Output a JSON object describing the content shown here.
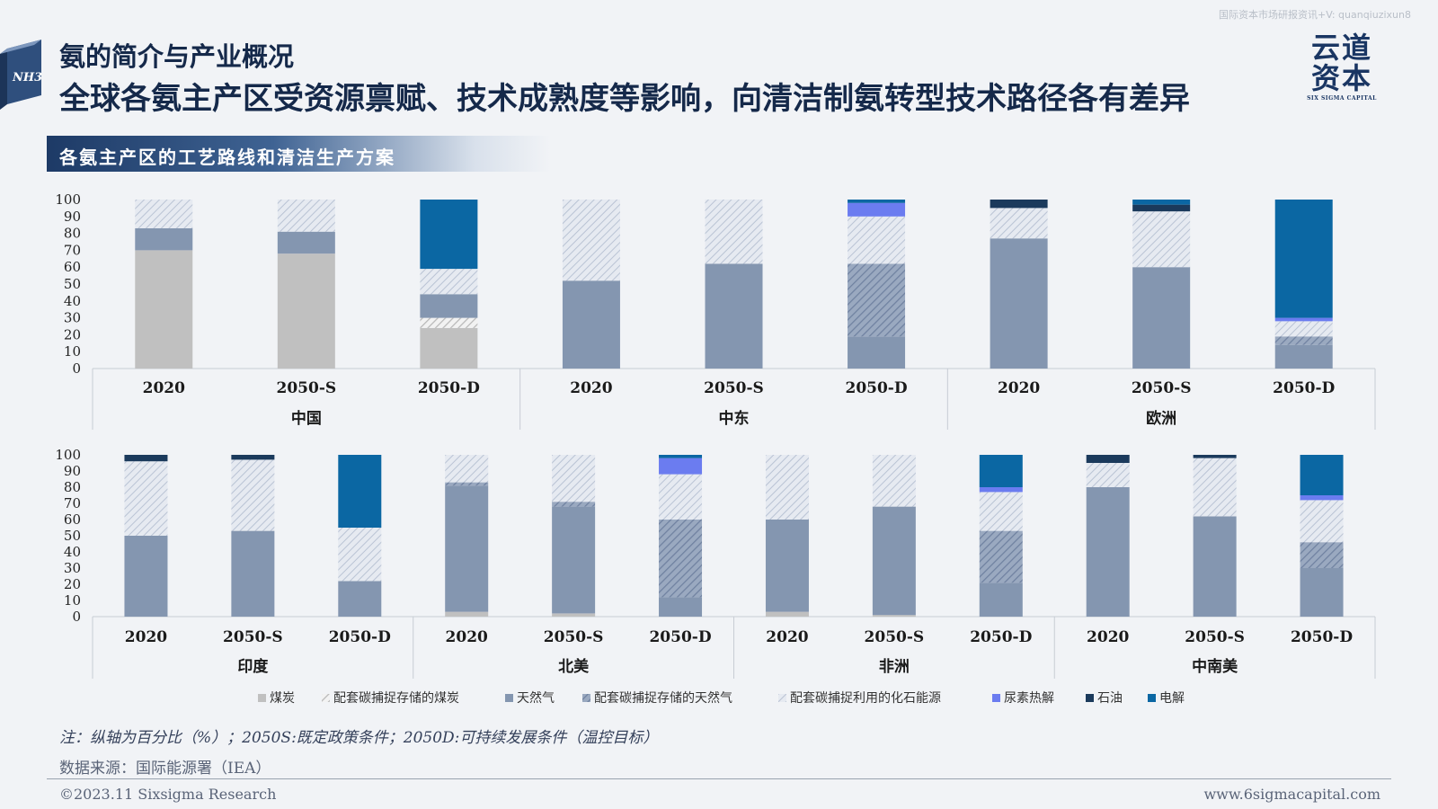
{
  "top_watermark": "国际资本市场研报资讯+V: quanqiuzixun8",
  "nh3_label": "NH3",
  "subtitle": "氨的简介与产业概况",
  "title": "全球各氨主产区受资源禀赋、技术成熟度等影响，向清洁制氨转型技术路径各有差异",
  "logo": {
    "cn_line1": "云道",
    "cn_line2": "资本",
    "en": "SIX SIGMA CAPITAL"
  },
  "banner": "各氨主产区的工艺路线和清洁生产方案",
  "note": "注：纵轴为百分比（%）；2050S:既定政策条件；2050D:可持续发展条件（温控目标）",
  "source": "数据来源：国际能源署（IEA）",
  "footer_left": "©2023.11 Sixsigma Research",
  "footer_right": "www.6sigmacapital.com",
  "colors": {
    "coal": "#c0c0c0",
    "coal_ccs": "#c0c0c0",
    "gas": "#8496b0",
    "gas_ccs": "#8496b0",
    "fossil_ccu": "#d6dce6",
    "urea": "#6b7cf0",
    "oil": "#1b3a5c",
    "electrolysis": "#0b67a3"
  },
  "chart_data": {
    "type": "bar",
    "stacked": true,
    "ylim": [
      0,
      100
    ],
    "yticks": [
      0,
      10,
      20,
      30,
      40,
      50,
      60,
      70,
      80,
      90,
      100
    ],
    "series_names": [
      "煤炭",
      "配套碳捕捉存储的煤炭",
      "天然气",
      "配套碳捕捉存储的天然气",
      "配套碳捕捉利用的化石能源",
      "尿素热解",
      "石油",
      "电解"
    ],
    "series_keys": [
      "coal",
      "coal_ccs",
      "gas",
      "gas_ccs",
      "fossil_ccu",
      "urea",
      "oil",
      "electrolysis"
    ],
    "panels": [
      {
        "regions": [
          {
            "name": "中国",
            "bars": [
              {
                "label": "2020",
                "values": [
                  70,
                  0,
                  13,
                  0,
                  17,
                  0,
                  0,
                  0
                ]
              },
              {
                "label": "2050-S",
                "values": [
                  68,
                  0,
                  13,
                  0,
                  19,
                  0,
                  0,
                  0
                ]
              },
              {
                "label": "2050-D",
                "values": [
                  24,
                  6,
                  14,
                  0,
                  15,
                  0,
                  0,
                  41
                ]
              }
            ]
          },
          {
            "name": "中东",
            "bars": [
              {
                "label": "2020",
                "values": [
                  0,
                  0,
                  52,
                  0,
                  48,
                  0,
                  0,
                  0
                ]
              },
              {
                "label": "2050-S",
                "values": [
                  0,
                  0,
                  62,
                  0,
                  38,
                  0,
                  0,
                  0
                ]
              },
              {
                "label": "2050-D",
                "values": [
                  0,
                  0,
                  19,
                  43,
                  28,
                  8,
                  0,
                  2
                ]
              }
            ]
          },
          {
            "name": "欧洲",
            "bars": [
              {
                "label": "2020",
                "values": [
                  0,
                  0,
                  77,
                  0,
                  18,
                  0,
                  5,
                  0
                ]
              },
              {
                "label": "2050-S",
                "values": [
                  0,
                  0,
                  60,
                  0,
                  33,
                  0,
                  4,
                  3
                ]
              },
              {
                "label": "2050-D",
                "values": [
                  0,
                  0,
                  14,
                  5,
                  9,
                  2,
                  0,
                  70
                ]
              }
            ]
          }
        ]
      },
      {
        "regions": [
          {
            "name": "印度",
            "bars": [
              {
                "label": "2020",
                "values": [
                  0,
                  0,
                  50,
                  0,
                  46,
                  0,
                  4,
                  0
                ]
              },
              {
                "label": "2050-S",
                "values": [
                  0,
                  0,
                  53,
                  0,
                  44,
                  0,
                  3,
                  0
                ]
              },
              {
                "label": "2050-D",
                "values": [
                  0,
                  0,
                  22,
                  0,
                  33,
                  0,
                  0,
                  45
                ]
              }
            ]
          },
          {
            "name": "北美",
            "bars": [
              {
                "label": "2020",
                "values": [
                  3,
                  0,
                  78,
                  2,
                  17,
                  0,
                  0,
                  0
                ]
              },
              {
                "label": "2050-S",
                "values": [
                  2,
                  0,
                  66,
                  3,
                  29,
                  0,
                  0,
                  0
                ]
              },
              {
                "label": "2050-D",
                "values": [
                  0,
                  0,
                  12,
                  48,
                  28,
                  10,
                  0,
                  2
                ]
              }
            ]
          },
          {
            "name": "非洲",
            "bars": [
              {
                "label": "2020",
                "values": [
                  3,
                  0,
                  57,
                  0,
                  40,
                  0,
                  0,
                  0
                ]
              },
              {
                "label": "2050-S",
                "values": [
                  1,
                  0,
                  67,
                  0,
                  32,
                  0,
                  0,
                  0
                ]
              },
              {
                "label": "2050-D",
                "values": [
                  0,
                  0,
                  21,
                  32,
                  24,
                  3,
                  0,
                  20
                ]
              }
            ]
          },
          {
            "name": "中南美",
            "bars": [
              {
                "label": "2020",
                "values": [
                  0,
                  0,
                  80,
                  0,
                  15,
                  0,
                  5,
                  0
                ]
              },
              {
                "label": "2050-S",
                "values": [
                  0,
                  0,
                  62,
                  0,
                  36,
                  0,
                  2,
                  0
                ]
              },
              {
                "label": "2050-D",
                "values": [
                  0,
                  0,
                  30,
                  16,
                  26,
                  3,
                  0,
                  25
                ]
              }
            ]
          }
        ]
      }
    ]
  }
}
